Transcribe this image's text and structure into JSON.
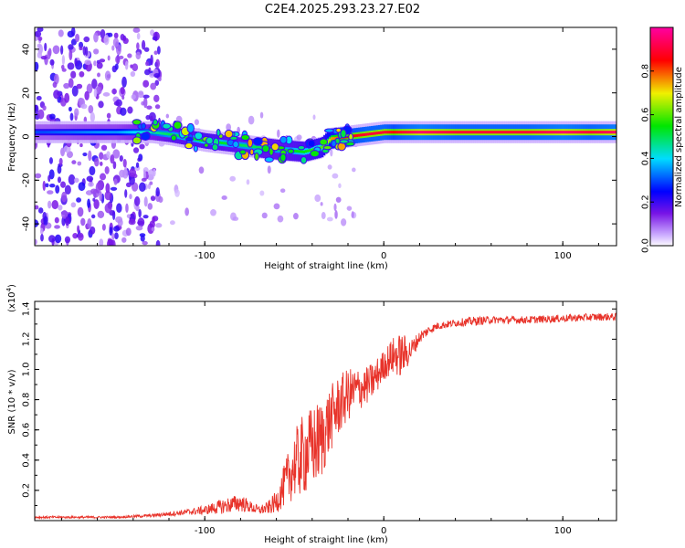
{
  "title": "C2E4.2025.293.23.27.E02",
  "colorbar": {
    "label": "Normalized spectral amplitude",
    "ticks": [
      "0.0",
      "0.2",
      "0.4",
      "0.6",
      "0.8"
    ],
    "tick_values": [
      0.0,
      0.2,
      0.4,
      0.6,
      0.8
    ]
  },
  "chart_data": [
    {
      "type": "heatmap",
      "name": "spectrogram",
      "xlabel": "Height of straight line (km)",
      "ylabel": "Frequency (Hz)",
      "xlim": [
        -195,
        130
      ],
      "ylim": [
        -50,
        50
      ],
      "xticks": [
        -100,
        0,
        100
      ],
      "xtick_labels": [
        "-100",
        "0",
        "100"
      ],
      "yticks": [
        -40,
        -20,
        0,
        20,
        40
      ],
      "ytick_labels": [
        "-40",
        "-20",
        "0",
        "20",
        "40"
      ],
      "ridge": {
        "x": [
          -190,
          -160,
          -150,
          -130,
          -120,
          -100,
          -80,
          -60,
          -45,
          -35,
          -30,
          -20,
          -10,
          0,
          5,
          10,
          20,
          40,
          60,
          80,
          100,
          115,
          130
        ],
        "freq": [
          2,
          2,
          2,
          2,
          1,
          -2,
          -4,
          -6,
          -7,
          -5,
          -1,
          0,
          1,
          2,
          2,
          2,
          2,
          2,
          2,
          2,
          2,
          2,
          2
        ],
        "amplitude": [
          0.3,
          0.35,
          0.35,
          0.45,
          0.5,
          0.55,
          0.5,
          0.5,
          0.55,
          0.6,
          0.75,
          0.85,
          0.9,
          0.9,
          0.85,
          0.9,
          0.95,
          0.9,
          0.9,
          0.9,
          0.95,
          0.9,
          0.95
        ]
      },
      "scatter_region": {
        "x": [
          -195,
          -125
        ],
        "freq": [
          -50,
          50
        ],
        "amplitude": 0.15
      }
    },
    {
      "type": "line",
      "name": "snr",
      "xlabel": "Height of straight line (km)",
      "ylabel": "SNR (10 * v/v)",
      "multiplier_label": "(x10",
      "multiplier_exp": "4",
      "multiplier_close": ")",
      "color": "#e8332a",
      "xlim": [
        -195,
        130
      ],
      "ylim": [
        0,
        1.45
      ],
      "xticks": [
        -100,
        0,
        100
      ],
      "xtick_labels": [
        "-100",
        "0",
        "100"
      ],
      "yticks": [
        0.2,
        0.4,
        0.6,
        0.8,
        1.0,
        1.2,
        1.4
      ],
      "ytick_labels": [
        "0.2",
        "0.4",
        "0.6",
        "0.8",
        "1.0",
        "1.2",
        "1.4"
      ],
      "envelope": {
        "x": [
          -195,
          -150,
          -130,
          -120,
          -110,
          -100,
          -90,
          -80,
          -75,
          -70,
          -65,
          -60,
          -55,
          -50,
          -45,
          -40,
          -35,
          -30,
          -25,
          -20,
          -15,
          -10,
          -5,
          0,
          5,
          10,
          15,
          20,
          25,
          30,
          40,
          50,
          60,
          80,
          100,
          120,
          130
        ],
        "base": [
          0.02,
          0.02,
          0.03,
          0.04,
          0.05,
          0.06,
          0.08,
          0.1,
          0.08,
          0.06,
          0.07,
          0.1,
          0.2,
          0.3,
          0.35,
          0.4,
          0.45,
          0.6,
          0.7,
          0.78,
          0.82,
          0.85,
          0.9,
          1.0,
          1.05,
          1.05,
          1.1,
          1.2,
          1.25,
          1.28,
          1.3,
          1.31,
          1.32,
          1.32,
          1.33,
          1.34,
          1.34
        ],
        "amp": [
          0.015,
          0.015,
          0.02,
          0.03,
          0.04,
          0.06,
          0.1,
          0.12,
          0.08,
          0.06,
          0.08,
          0.15,
          0.3,
          0.45,
          0.55,
          0.55,
          0.55,
          0.45,
          0.4,
          0.35,
          0.3,
          0.25,
          0.25,
          0.2,
          0.25,
          0.3,
          0.15,
          0.08,
          0.06,
          0.05,
          0.05,
          0.06,
          0.05,
          0.05,
          0.05,
          0.05,
          0.05
        ]
      }
    }
  ]
}
